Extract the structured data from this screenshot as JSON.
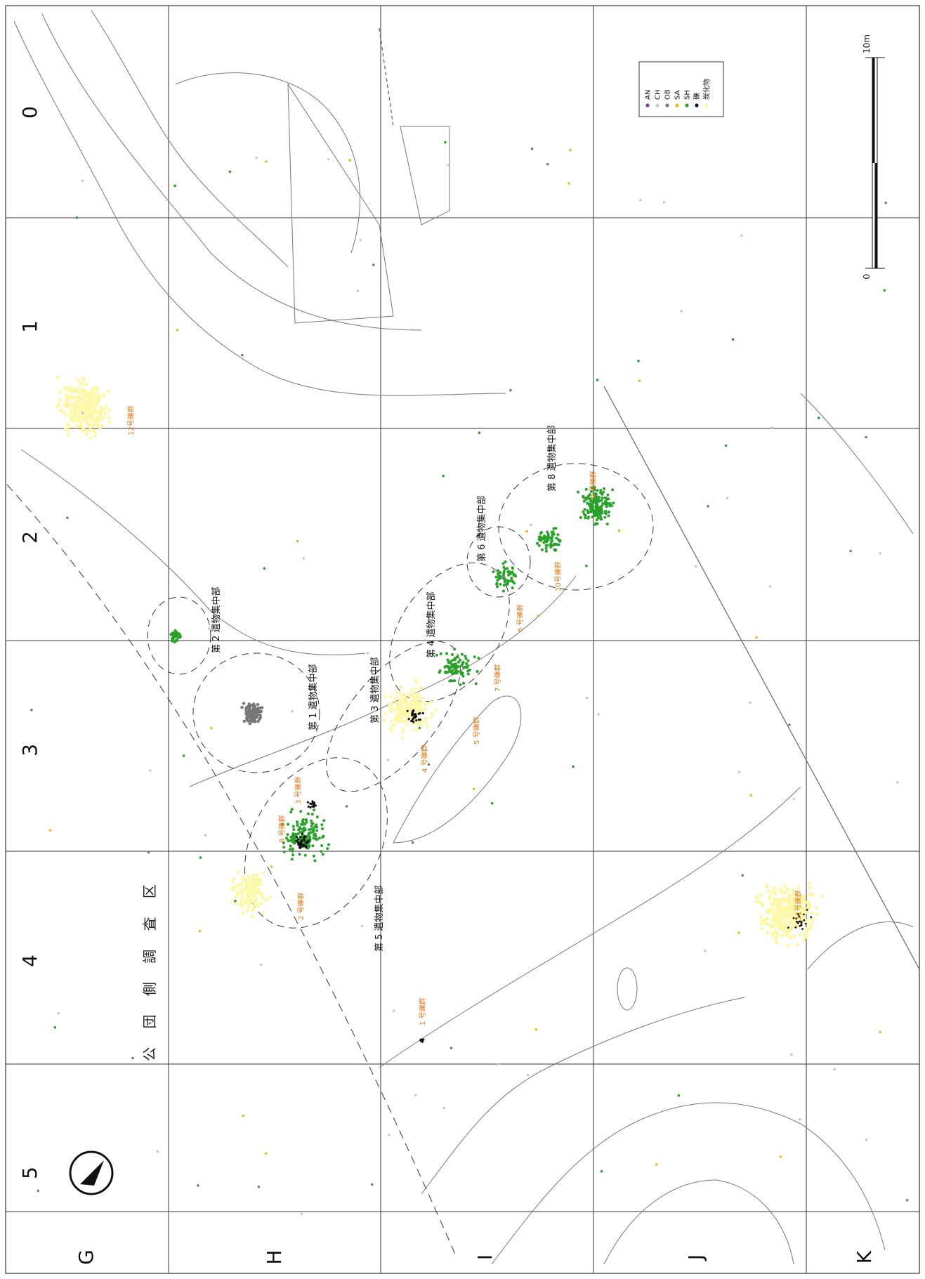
{
  "survey_side_label": "公 団 側 調 査 区",
  "row_labels": [
    "G",
    "H",
    "I",
    "J",
    "K"
  ],
  "column_labels": [
    "0",
    "1",
    "2",
    "3",
    "4",
    "5"
  ],
  "scale_bar": {
    "start_label": "0",
    "end_label": "10m"
  },
  "legend": {
    "items": [
      {
        "code": "AN",
        "color": "#7b3fa0"
      },
      {
        "code": "CH",
        "color": "#c8c8c8"
      },
      {
        "code": "OB",
        "color": "#777777"
      },
      {
        "code": "SA",
        "color": "#f0b429"
      },
      {
        "code": "SH",
        "color": "#2aa12a"
      },
      {
        "code": "礫",
        "color": "#111111"
      },
      {
        "code": "炭化物",
        "color": "#fdf7a8"
      }
    ]
  },
  "concentration_labels": [
    "第 1 遺物集中部",
    "第 2 遺物集中部",
    "第 3 遺物集中部",
    "第 4 遺物集中部",
    "第 5 遺物集中部",
    "第 6 遺物集中部",
    "第 8 遺物集中部"
  ],
  "gravel_group_labels": [
    "1 号礫群",
    "2 号礫群",
    "3 号礫群",
    "4 号礫群",
    "5 号礫群",
    "6 号礫群",
    "7 号礫群",
    "8 号礫群",
    "9 号礫群",
    "10号礫群",
    "11号礫群",
    "12号礫群"
  ],
  "colors": {
    "grid": "#333333",
    "contour": "#666666",
    "label_accent": "#e07a1f"
  }
}
